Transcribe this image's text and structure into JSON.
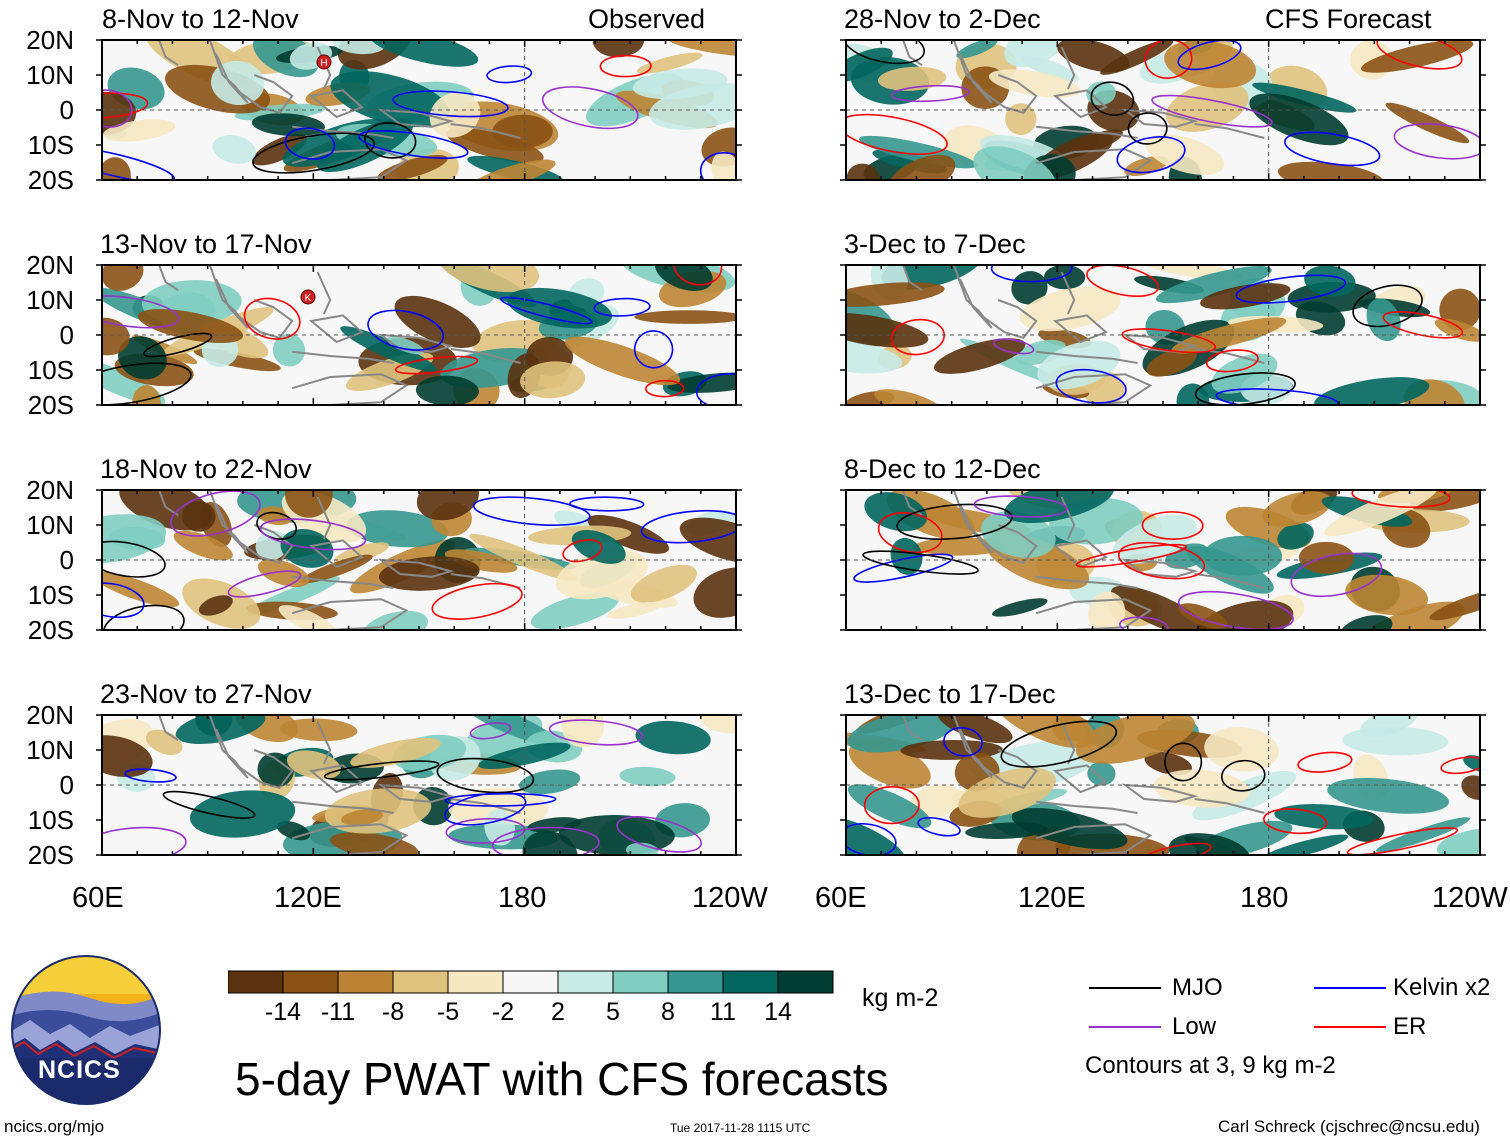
{
  "chart_data": {
    "type": "heatmap",
    "title": "5-day PWAT with CFS forecasts",
    "units": "kg m-2",
    "x_axis": {
      "ticks": [
        "60E",
        "120E",
        "180",
        "120W"
      ]
    },
    "y_axis": {
      "ticks": [
        "20N",
        "10N",
        "0",
        "10S",
        "20S"
      ]
    },
    "panels": [
      {
        "column": "left",
        "row": 1,
        "title": "8-Nov to 12-Nov",
        "tag": "Observed"
      },
      {
        "column": "left",
        "row": 2,
        "title": "13-Nov to 17-Nov",
        "tag": ""
      },
      {
        "column": "left",
        "row": 3,
        "title": "18-Nov to 22-Nov",
        "tag": ""
      },
      {
        "column": "left",
        "row": 4,
        "title": "23-Nov to 27-Nov",
        "tag": ""
      },
      {
        "column": "right",
        "row": 1,
        "title": "28-Nov to 2-Dec",
        "tag": "CFS Forecast"
      },
      {
        "column": "right",
        "row": 2,
        "title": "3-Dec to 7-Dec",
        "tag": ""
      },
      {
        "column": "right",
        "row": 3,
        "title": "8-Dec to 12-Dec",
        "tag": ""
      },
      {
        "column": "right",
        "row": 4,
        "title": "13-Dec to 17-Dec",
        "tag": ""
      }
    ],
    "colorbar": {
      "colors": [
        "#5a3210",
        "#8a5214",
        "#bd8533",
        "#dfc27d",
        "#f6e8c3",
        "#f7f7f7",
        "#c7eae5",
        "#80cdc1",
        "#35978f",
        "#01665e",
        "#003c30"
      ],
      "labels": [
        "-14",
        "-11",
        "-8",
        "-5",
        "-2",
        "2",
        "5",
        "8",
        "11",
        "14"
      ],
      "units": "kg m-2"
    },
    "contour_legend": [
      {
        "label": "MJO",
        "color": "#000000"
      },
      {
        "label": "Kelvin x2",
        "color": "#0000ff"
      },
      {
        "label": "Low",
        "color": "#9933cc"
      },
      {
        "label": "ER",
        "color": "#ff0000"
      }
    ],
    "contour_note": "Contours at 3, 9 kg m-2",
    "storm_markers": [
      "H",
      "K"
    ]
  },
  "footer": {
    "site": "ncics.org/mjo",
    "timestamp": "Tue 2017-11-28 1115 UTC",
    "credit": "Carl Schreck (cjschrec@ncsu.edu)",
    "logo_text": "NCICS"
  },
  "colors": {
    "land": "#888888",
    "grid": "#555555"
  }
}
